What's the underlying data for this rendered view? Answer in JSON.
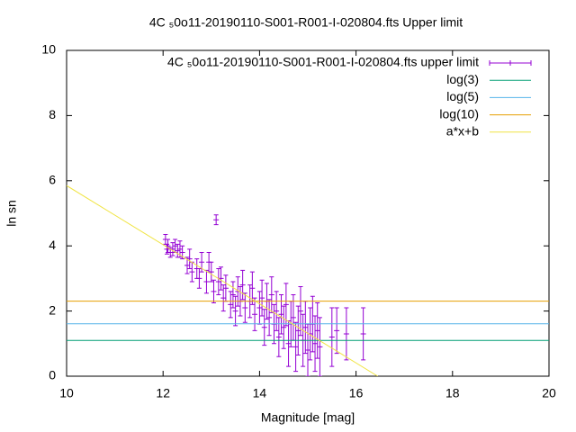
{
  "chart_data": {
    "type": "scatter",
    "title": "4C ₅0o11-20190110-S001-R001-I-020804.fts Upper limit",
    "x_label": "Magnitude [mag]",
    "y_label": "ln sn",
    "xlim": [
      10,
      20
    ],
    "xticks": [
      10,
      12,
      14,
      16,
      18,
      20
    ],
    "ylim": [
      0,
      10
    ],
    "yticks": [
      0,
      2,
      4,
      6,
      8,
      10
    ],
    "grid": false,
    "legend": "top-right",
    "series": [
      {
        "name": "4C ₅0o11-20190110-S001-R001-I-020804.fts upper limit",
        "color": "#9400d3",
        "kind": "errorbars",
        "x": [
          12.05,
          12.08,
          12.1,
          12.15,
          12.2,
          12.25,
          12.3,
          12.35,
          12.4,
          12.5,
          12.55,
          12.6,
          12.7,
          12.75,
          12.8,
          12.9,
          12.95,
          13.0,
          13.05,
          13.1,
          13.15,
          13.2,
          13.25,
          13.3,
          13.4,
          13.45,
          13.5,
          13.55,
          13.6,
          13.65,
          13.7,
          13.8,
          13.85,
          13.9,
          14.0,
          14.05,
          14.1,
          14.15,
          14.2,
          14.25,
          14.3,
          14.35,
          14.4,
          14.45,
          14.5,
          14.55,
          14.6,
          14.65,
          14.7,
          14.75,
          14.8,
          14.85,
          14.9,
          14.95,
          15.0,
          15.05,
          15.1,
          15.15,
          15.2,
          15.25,
          15.5,
          15.6,
          15.8,
          16.15
        ],
        "values": [
          4.2,
          3.9,
          4.0,
          3.8,
          3.9,
          4.0,
          3.85,
          3.9,
          3.8,
          3.4,
          3.6,
          3.2,
          3.3,
          3.0,
          3.5,
          2.9,
          3.5,
          3.2,
          2.6,
          4.8,
          2.9,
          3.0,
          2.4,
          2.7,
          2.2,
          2.5,
          2.0,
          2.6,
          2.3,
          2.8,
          2.1,
          2.3,
          2.7,
          1.9,
          2.1,
          2.4,
          1.5,
          2.3,
          1.8,
          2.5,
          1.6,
          2.0,
          1.2,
          1.9,
          1.5,
          2.2,
          1.0,
          1.6,
          1.8,
          0.9,
          1.4,
          2.0,
          1.1,
          1.5,
          0.8,
          1.3,
          1.6,
          1.0,
          1.4,
          0.9,
          1.2,
          1.4,
          1.3,
          1.3
        ],
        "errors": [
          0.15,
          0.15,
          0.2,
          0.15,
          0.2,
          0.2,
          0.2,
          0.25,
          0.2,
          0.25,
          0.3,
          0.3,
          0.3,
          0.3,
          0.3,
          0.35,
          0.3,
          0.3,
          0.35,
          0.15,
          0.4,
          0.35,
          0.4,
          0.4,
          0.4,
          0.4,
          0.45,
          0.45,
          0.45,
          0.45,
          0.45,
          0.5,
          0.5,
          0.5,
          0.5,
          0.55,
          0.55,
          0.55,
          0.55,
          0.55,
          0.6,
          0.6,
          0.6,
          0.6,
          0.65,
          0.65,
          0.7,
          0.7,
          0.7,
          0.75,
          0.75,
          0.75,
          0.8,
          0.8,
          0.8,
          0.8,
          0.85,
          0.85,
          0.85,
          0.9,
          0.9,
          0.7,
          0.8,
          0.8
        ]
      },
      {
        "name": "log(3)",
        "color": "#009e73",
        "kind": "line",
        "x": [
          10,
          20
        ],
        "values": [
          1.0986,
          1.0986
        ]
      },
      {
        "name": "log(5)",
        "color": "#56b4e9",
        "kind": "line",
        "x": [
          10,
          20
        ],
        "values": [
          1.6094,
          1.6094
        ]
      },
      {
        "name": "log(10)",
        "color": "#e69f00",
        "kind": "line",
        "x": [
          10,
          20
        ],
        "values": [
          2.3026,
          2.3026
        ]
      },
      {
        "name": "a*x+b",
        "color": "#f0e442",
        "kind": "line",
        "x": [
          10,
          16.45
        ],
        "values": [
          5.85,
          0
        ]
      }
    ]
  }
}
